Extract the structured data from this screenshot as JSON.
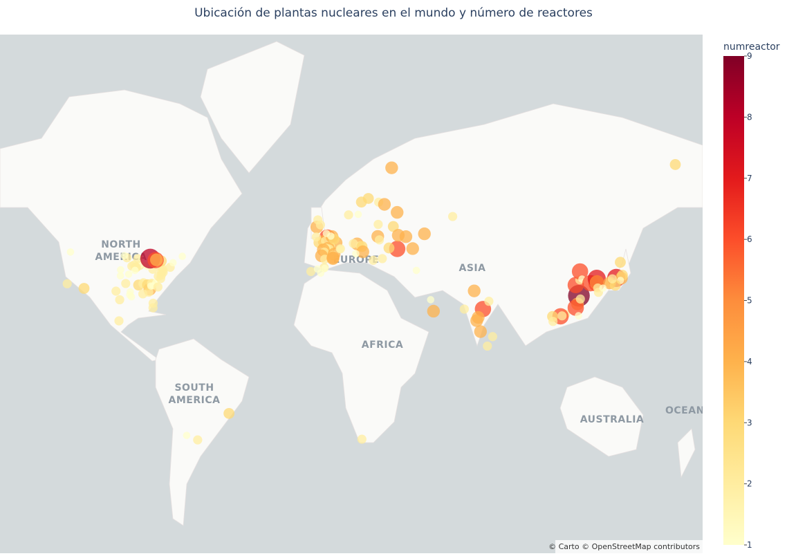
{
  "chart_data": {
    "type": "scattermap",
    "title": "Ubicación de plantas nucleares en el mundo y número de reactores",
    "colorbar_title": "numreactor",
    "attribution": "© Carto © OpenStreetMap contributors",
    "map_labels": [
      [
        "NORTH",
        "AMERICA"
      ],
      [
        "EUROPE"
      ],
      [
        "ASIA"
      ],
      [
        "AFRICA"
      ],
      [
        "SOUTH",
        "AMERICA"
      ],
      [
        "AUSTRALIA"
      ],
      [
        "OCEANIA"
      ]
    ],
    "clim": [
      1,
      9
    ],
    "cticks": [
      1,
      2,
      3,
      4,
      5,
      6,
      7,
      8,
      9
    ],
    "colorscale": [
      "#ffffcc",
      "#ffeda0",
      "#fed976",
      "#feb24c",
      "#fd8d3c",
      "#fc4e2a",
      "#e31a1c",
      "#bd0026",
      "#800026"
    ],
    "lon": [
      -112.9,
      -120.85,
      -119.3,
      -97.8,
      -96.05,
      -95.7,
      -91.8,
      -95.6,
      -93.2,
      -91.05,
      -91.3,
      -90.5,
      -87.1,
      -85.1,
      -84.8,
      -81.8,
      -82.3,
      -85.1,
      -80.3,
      -80.25,
      -82.9,
      -81.1,
      -80.95,
      -80.2,
      -81.3,
      -78.95,
      -78.0,
      -77.8,
      -76.7,
      -76.4,
      -76.3,
      -76.15,
      -75.6,
      -75.5,
      -80.4,
      -81.15,
      -83.1,
      -83.25,
      -86.55,
      -86.3,
      -89.3,
      -88.2,
      -88.7,
      -88.3,
      -90.3,
      -88.8,
      -87.5,
      -92.6,
      -93.85,
      -76.4,
      -77.3,
      -72.2,
      -70.85,
      -81.6,
      -79.07,
      -78.7,
      -66.45,
      -96.4,
      -44.4,
      -59.2,
      -64.4,
      18.4,
      2.1,
      0.63,
      -1.88,
      1.2,
      4.8,
      6.2,
      3.5,
      2.5,
      2.87,
      1.58,
      0.17,
      0.65,
      -0.69,
      0.85,
      5.27,
      4.75,
      4.76,
      4.73,
      4.26,
      5.27,
      3.72,
      -2.9,
      -1.18,
      -2.4,
      1.62,
      -3.13,
      -5.7,
      0.57,
      0.87,
      -1.05,
      -2.6,
      7.97,
      8.18,
      8.23,
      18.17,
      16.67,
      12.1,
      21.45,
      26.35,
      16.15,
      14.38,
      17.7,
      18.45,
      18.85,
      15.5,
      28.05,
      23.77,
      35.1,
      25.9,
      26.65,
      31.2,
      26.1,
      29.05,
      32.47,
      35.05,
      33.25,
      35.6,
      39.2,
      42.4,
      47.95,
      61.3,
      166.5,
      44.15,
      50.9,
      71.46,
      66.79,
      52.23,
      75.61,
      72.66,
      73.35,
      74.44,
      80.17,
      77.71,
      78.4,
      120.95,
      119.46,
      114.55,
      112.26,
      112.98,
      108.5,
      108.7,
      120.28,
      119.45,
      121.65,
      121.38,
      121.48,
      122.4,
      120.75,
      129.3,
      126.42,
      129.38,
      129.48,
      138.6,
      141.02,
      135.65,
      135.5,
      129.84,
      130.19,
      132.31,
      140.51,
      141.5,
      140.6,
      138.14,
      136.73
    ],
    "lat": [
      33.4,
      35.2,
      46.5,
      32.3,
      28.8,
      38.2,
      38.8,
      40.4,
      35.3,
      32.0,
      30.75,
      30.0,
      34.7,
      35.2,
      35.6,
      33.1,
      31.9,
      31.2,
      25.4,
      27.35,
      34.8,
      35.05,
      35.4,
      34.4,
      34.3,
      35.6,
      33.95,
      38.05,
      37.2,
      38.4,
      39.8,
      41.1,
      40.2,
      39.5,
      40.6,
      41.8,
      41.6,
      41.96,
      42.0,
      42.3,
      42.1,
      41.2,
      41.25,
      41.4,
      41.7,
      40.2,
      44.3,
      44.6,
      45.3,
      43.5,
      43.3,
      41.3,
      42.9,
      44.3,
      43.8,
      43.9,
      45.07,
      19.7,
      -23.0,
      -33.97,
      -32.2,
      -33.7,
      51.0,
      49.86,
      49.5,
      49.98,
      50.1,
      49.4,
      48.5,
      47.7,
      47.5,
      47.7,
      47.2,
      46.45,
      45.26,
      44.1,
      45.8,
      45.4,
      44.63,
      44.33,
      51.3,
      50.53,
      51.43,
      54.03,
      54.63,
      55.97,
      52.2,
      51.2,
      39.8,
      41.2,
      40.95,
      39.2,
      40.7,
      47.37,
      47.6,
      47.55,
      60.4,
      57.4,
      57.26,
      61.23,
      60.37,
      49.08,
      49.18,
      48.5,
      48.26,
      46.57,
      45.94,
      44.32,
      43.75,
      47.5,
      51.33,
      50.3,
      47.8,
      54.76,
      59.85,
      67.47,
      57.9,
      54.17,
      51.67,
      51.27,
      47.6,
      52.1,
      56.85,
      68.05,
      40.18,
      28.8,
      32.39,
      24.85,
      23.96,
      24.87,
      19.83,
      21.24,
      14.86,
      12.56,
      8.17,
      28.16,
      30.43,
      34.69,
      22.6,
      21.71,
      21.92,
      21.66,
      19.46,
      27.04,
      25.45,
      29.1,
      36.71,
      39.8,
      36.97,
      21.96,
      35.32,
      35.41,
      37.09,
      35.71,
      37.43,
      37.32,
      35.54,
      35.52,
      33.52,
      31.83,
      33.49,
      43.04,
      38.4,
      36.47,
      34.62,
      37.06
    ],
    "numreactor": [
      3,
      2,
      1,
      2,
      2,
      1,
      1,
      1,
      2,
      1,
      1,
      1,
      3,
      2,
      2,
      4,
      2,
      2,
      2,
      2,
      3,
      2,
      2,
      1,
      1,
      1,
      2,
      2,
      2,
      2,
      2,
      2,
      2,
      2,
      2,
      1,
      1,
      1,
      2,
      1,
      2,
      2,
      2,
      2,
      2,
      1,
      2,
      2,
      1,
      3,
      1,
      2,
      1,
      8,
      6,
      4,
      1,
      2,
      3,
      2,
      1,
      2,
      6,
      4,
      3,
      2,
      2,
      4,
      2,
      4,
      2,
      2,
      4,
      2,
      4,
      2,
      4,
      2,
      4,
      4,
      4,
      3,
      1,
      4,
      2,
      2,
      1,
      2,
      2,
      2,
      1,
      1,
      1,
      1,
      1,
      2,
      3,
      1,
      2,
      3,
      2,
      4,
      2,
      2,
      3,
      4,
      1,
      2,
      2,
      6,
      4,
      2,
      3,
      2,
      4,
      4,
      4,
      3,
      4,
      4,
      4,
      4,
      2,
      3,
      1,
      1,
      4,
      2,
      4,
      6,
      4,
      4,
      4,
      2,
      2,
      2,
      9,
      6,
      2,
      6,
      2,
      3,
      2,
      4,
      6,
      2,
      2,
      6,
      1,
      1,
      6,
      6,
      7,
      5,
      7,
      4,
      2,
      4,
      2,
      2,
      1,
      3,
      3,
      1,
      3,
      2
    ]
  }
}
